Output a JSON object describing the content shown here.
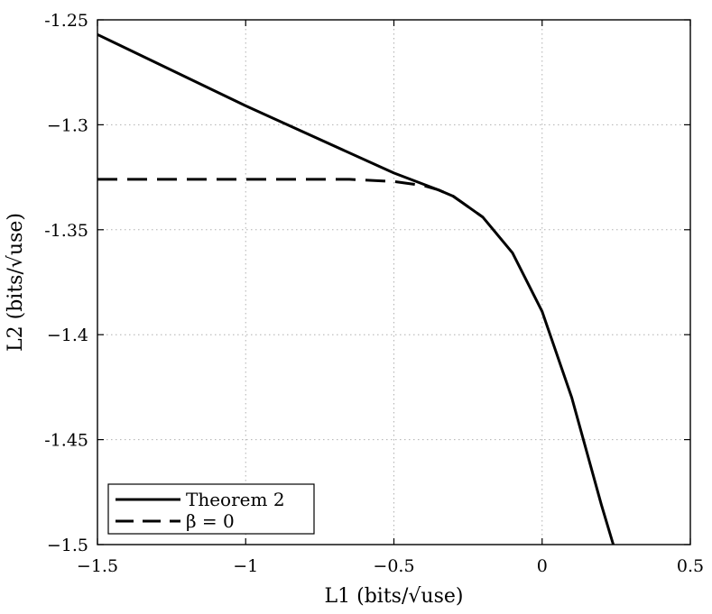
{
  "chart_data": {
    "type": "line",
    "title": "",
    "xlabel": "L1 (bits/√use)",
    "ylabel": "L2 (bits/√use)",
    "xlim": [
      -1.5,
      0.5
    ],
    "ylim": [
      -1.5,
      -1.25
    ],
    "xticks": [
      -1.5,
      -1,
      -0.5,
      0,
      0.5
    ],
    "xtick_labels": [
      "−1.5",
      "−1",
      "−0.5",
      "0",
      "0.5"
    ],
    "yticks": [
      -1.5,
      -1.45,
      -1.4,
      -1.35,
      -1.3,
      -1.25
    ],
    "ytick_labels": [
      "−1.5",
      "-1.45",
      "−1.4",
      "-1.35",
      "−1.3",
      "-1.25"
    ],
    "grid": true,
    "legend_position": "bottom-left",
    "series": [
      {
        "name": "Theorem 2",
        "style": "solid",
        "x": [
          -1.5,
          -1.0,
          -0.5,
          -0.35,
          -0.3,
          -0.2,
          -0.1,
          0.0,
          0.1,
          0.2,
          0.24
        ],
        "y": [
          -1.257,
          -1.291,
          -1.323,
          -1.331,
          -1.334,
          -1.344,
          -1.361,
          -1.389,
          -1.43,
          -1.481,
          -1.5
        ]
      },
      {
        "name": "β = 0",
        "style": "dashed",
        "x": [
          -1.5,
          -1.0,
          -0.65,
          -0.5,
          -0.4,
          -0.35,
          -0.3,
          -0.2
        ],
        "y": [
          -1.326,
          -1.326,
          -1.326,
          -1.327,
          -1.329,
          -1.331,
          -1.334,
          -1.344
        ]
      }
    ],
    "colors": {
      "line": "#000000",
      "grid": "#b0b0b0"
    }
  }
}
